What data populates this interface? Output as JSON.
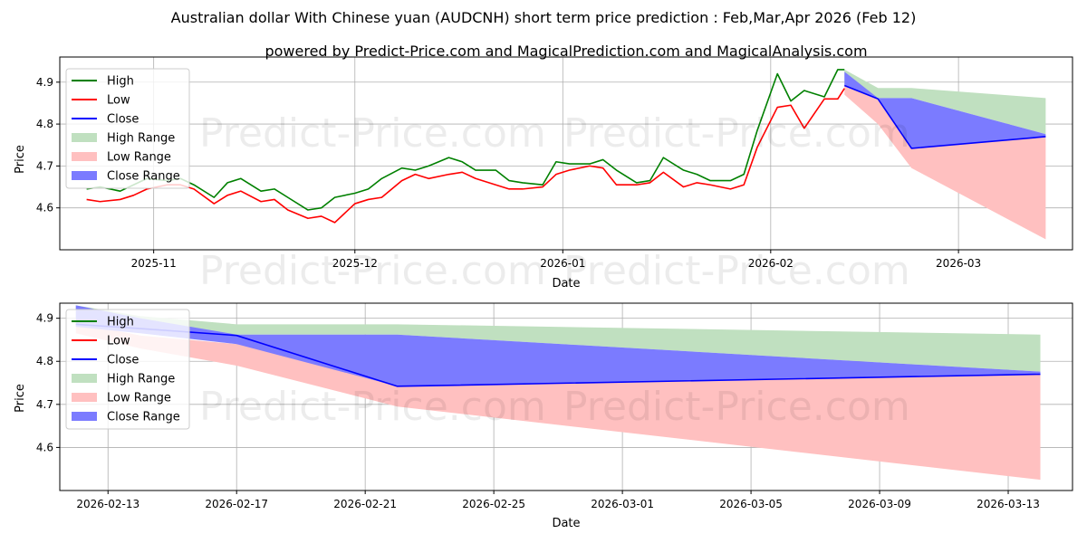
{
  "title": "Australian dollar With Chinese yuan (AUDCNH) short term price prediction : Feb,Mar,Apr 2026 (Feb 12)",
  "subtitle": "powered by Predict-Price.com and MagicalPrediction.com and MagicalAnalysis.com",
  "watermark": "Predict-Price.com",
  "colors": {
    "high": "#008000",
    "low": "#ff0000",
    "close": "#0000ff",
    "high_range": "#c0e0c0",
    "low_range": "#ffc0c0",
    "close_range": "#7b7bff"
  },
  "chart_data": [
    {
      "type": "line",
      "name": "top-panel",
      "xlabel": "Date",
      "ylabel": "Price",
      "xlim": [
        "2025-10-18",
        "2026-03-18"
      ],
      "ylim": [
        4.5,
        4.96
      ],
      "grid": true,
      "legend": "top-left",
      "x_ticks": [
        {
          "date": "2025-11-01",
          "label": "2025-11"
        },
        {
          "date": "2025-12-01",
          "label": "2025-12"
        },
        {
          "date": "2026-01-01",
          "label": "2026-01"
        },
        {
          "date": "2026-02-01",
          "label": "2026-02"
        },
        {
          "date": "2026-03-01",
          "label": "2026-03"
        }
      ],
      "y_ticks": [
        4.6,
        4.7,
        4.8,
        4.9
      ],
      "legend_labels": [
        "High",
        "Low",
        "Close",
        "High Range",
        "Low Range",
        "Close Range"
      ],
      "history_dates": [
        "2025-10-22",
        "2025-10-24",
        "2025-10-27",
        "2025-10-29",
        "2025-10-31",
        "2025-11-03",
        "2025-11-05",
        "2025-11-07",
        "2025-11-10",
        "2025-11-12",
        "2025-11-14",
        "2025-11-17",
        "2025-11-19",
        "2025-11-21",
        "2025-11-24",
        "2025-11-26",
        "2025-11-28",
        "2025-12-01",
        "2025-12-03",
        "2025-12-05",
        "2025-12-08",
        "2025-12-10",
        "2025-12-12",
        "2025-12-15",
        "2025-12-17",
        "2025-12-19",
        "2025-12-22",
        "2025-12-24",
        "2025-12-26",
        "2025-12-29",
        "2025-12-31",
        "2026-01-02",
        "2026-01-05",
        "2026-01-07",
        "2026-01-09",
        "2026-01-12",
        "2026-01-14",
        "2026-01-16",
        "2026-01-19",
        "2026-01-21",
        "2026-01-23",
        "2026-01-26",
        "2026-01-28",
        "2026-01-30",
        "2026-02-02",
        "2026-02-04",
        "2026-02-06",
        "2026-02-09",
        "2026-02-11",
        "2026-02-12"
      ],
      "history_high": [
        4.645,
        4.65,
        4.64,
        4.655,
        4.67,
        4.665,
        4.67,
        4.655,
        4.625,
        4.66,
        4.67,
        4.64,
        4.645,
        4.625,
        4.595,
        4.6,
        4.625,
        4.635,
        4.645,
        4.67,
        4.695,
        4.69,
        4.7,
        4.72,
        4.71,
        4.69,
        4.69,
        4.665,
        4.66,
        4.655,
        4.71,
        4.705,
        4.705,
        4.715,
        4.69,
        4.66,
        4.665,
        4.72,
        4.69,
        4.68,
        4.665,
        4.665,
        4.68,
        4.785,
        4.92,
        4.855,
        4.88,
        4.865,
        4.93,
        4.93
      ],
      "history_low": [
        4.62,
        4.615,
        4.62,
        4.63,
        4.645,
        4.655,
        4.655,
        4.645,
        4.61,
        4.63,
        4.64,
        4.615,
        4.62,
        4.595,
        4.575,
        4.58,
        4.565,
        4.61,
        4.62,
        4.625,
        4.665,
        4.68,
        4.67,
        4.68,
        4.685,
        4.67,
        4.655,
        4.645,
        4.645,
        4.65,
        4.68,
        4.69,
        4.7,
        4.695,
        4.655,
        4.655,
        4.66,
        4.685,
        4.65,
        4.66,
        4.655,
        4.645,
        4.655,
        4.745,
        4.84,
        4.845,
        4.79,
        4.86,
        4.86,
        4.885
      ],
      "forecast_dates": [
        "2026-02-12",
        "2026-02-17",
        "2026-02-22",
        "2026-03-14"
      ],
      "forecast_close": [
        4.892,
        4.86,
        4.742,
        4.77
      ],
      "high_range_upper": [
        4.93,
        4.886,
        4.886,
        4.862
      ],
      "high_range_lower": [
        4.892,
        4.862,
        4.862,
        4.776
      ],
      "low_range_upper": [
        4.892,
        4.86,
        4.742,
        4.77
      ],
      "low_range_lower": [
        4.87,
        4.8,
        4.695,
        4.525
      ],
      "close_range_upper": [
        4.925,
        4.862,
        4.862,
        4.776
      ],
      "close_range_lower": [
        4.892,
        4.86,
        4.742,
        4.77
      ]
    },
    {
      "type": "line",
      "name": "bottom-panel",
      "xlabel": "Date",
      "ylabel": "Price",
      "xlim": [
        "2026-02-11.5",
        "2026-03-15"
      ],
      "ylim": [
        4.5,
        4.935
      ],
      "grid": true,
      "legend": "top-left",
      "x_ticks": [
        {
          "date": "2026-02-13",
          "label": "2026-02-13"
        },
        {
          "date": "2026-02-17",
          "label": "2026-02-17"
        },
        {
          "date": "2026-02-21",
          "label": "2026-02-21"
        },
        {
          "date": "2026-02-25",
          "label": "2026-02-25"
        },
        {
          "date": "2026-03-01",
          "label": "2026-03-01"
        },
        {
          "date": "2026-03-05",
          "label": "2026-03-05"
        },
        {
          "date": "2026-03-09",
          "label": "2026-03-09"
        },
        {
          "date": "2026-03-13",
          "label": "2026-03-13"
        }
      ],
      "y_ticks": [
        4.6,
        4.7,
        4.8,
        4.9
      ],
      "legend_labels": [
        "High",
        "Low",
        "Close",
        "High Range",
        "Low Range",
        "Close Range"
      ],
      "forecast_dates": [
        "2026-02-12",
        "2026-02-14",
        "2026-02-17",
        "2026-02-22",
        "2026-03-14"
      ],
      "forecast_close": [
        4.886,
        4.876,
        4.86,
        4.742,
        4.77
      ],
      "high_range_upper": [
        4.93,
        4.905,
        4.886,
        4.886,
        4.862
      ],
      "high_range_lower": [
        4.9,
        4.88,
        4.862,
        4.862,
        4.776
      ],
      "low_range_upper": [
        4.89,
        4.86,
        4.84,
        4.76,
        4.77
      ],
      "low_range_lower": [
        4.865,
        4.83,
        4.79,
        4.695,
        4.525
      ],
      "close_range_upper": [
        4.93,
        4.9,
        4.862,
        4.862,
        4.776
      ],
      "close_range_lower": [
        4.88,
        4.865,
        4.84,
        4.742,
        4.77
      ]
    }
  ]
}
